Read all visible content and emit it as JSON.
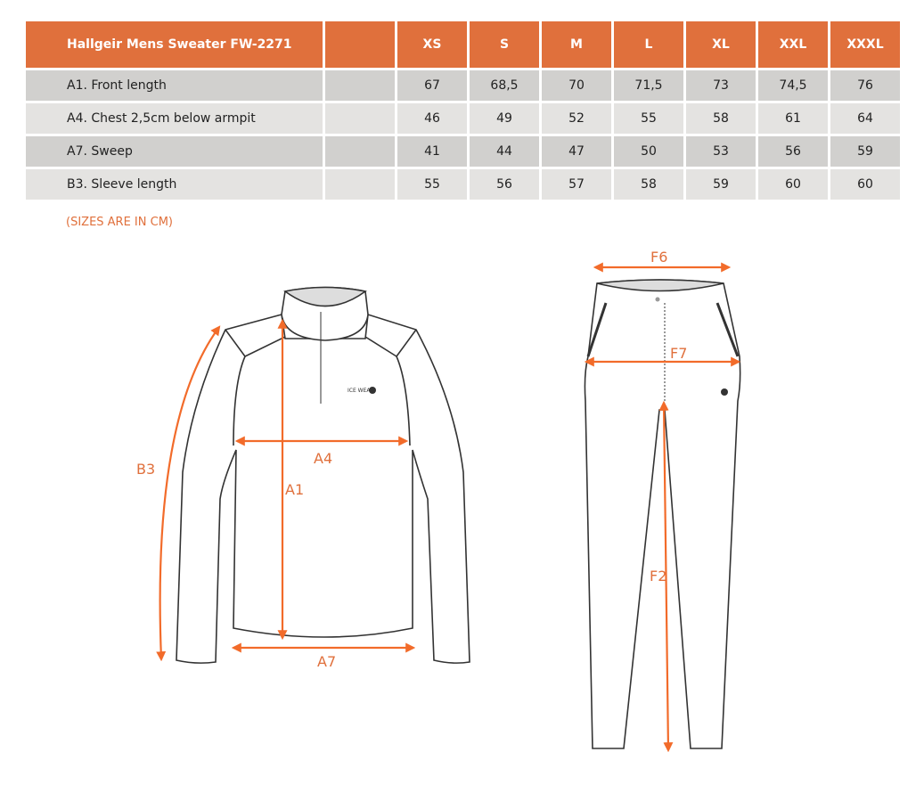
{
  "table": {
    "title": "Hallgeir Mens Sweater FW-2271",
    "sizes": [
      "XS",
      "S",
      "M",
      "L",
      "XL",
      "XXL",
      "XXXL"
    ],
    "rows": [
      {
        "label": "A1. Front length",
        "values": [
          "67",
          "68,5",
          "70",
          "71,5",
          "73",
          "74,5",
          "76"
        ]
      },
      {
        "label": "A4. Chest 2,5cm below armpit",
        "values": [
          "46",
          "49",
          "52",
          "55",
          "58",
          "61",
          "64"
        ]
      },
      {
        "label": "A7. Sweep",
        "values": [
          "41",
          "44",
          "47",
          "50",
          "53",
          "56",
          "59"
        ]
      },
      {
        "label": "B3. Sleeve length",
        "values": [
          "55",
          "56",
          "57",
          "58",
          "59",
          "60",
          "60"
        ]
      }
    ]
  },
  "note": "(SIZES ARE IN CM)",
  "diagram": {
    "sweater_labels": {
      "a1": "A1",
      "a4": "A4",
      "a7": "A7",
      "b3": "B3"
    },
    "pants_labels": {
      "f6": "F6",
      "f7": "F7",
      "f2": "F2"
    },
    "logo_text": "ICE WEAR"
  },
  "colors": {
    "accent": "#E0703C",
    "row_dark": "#D1D0CE",
    "row_light": "#E4E3E1"
  }
}
